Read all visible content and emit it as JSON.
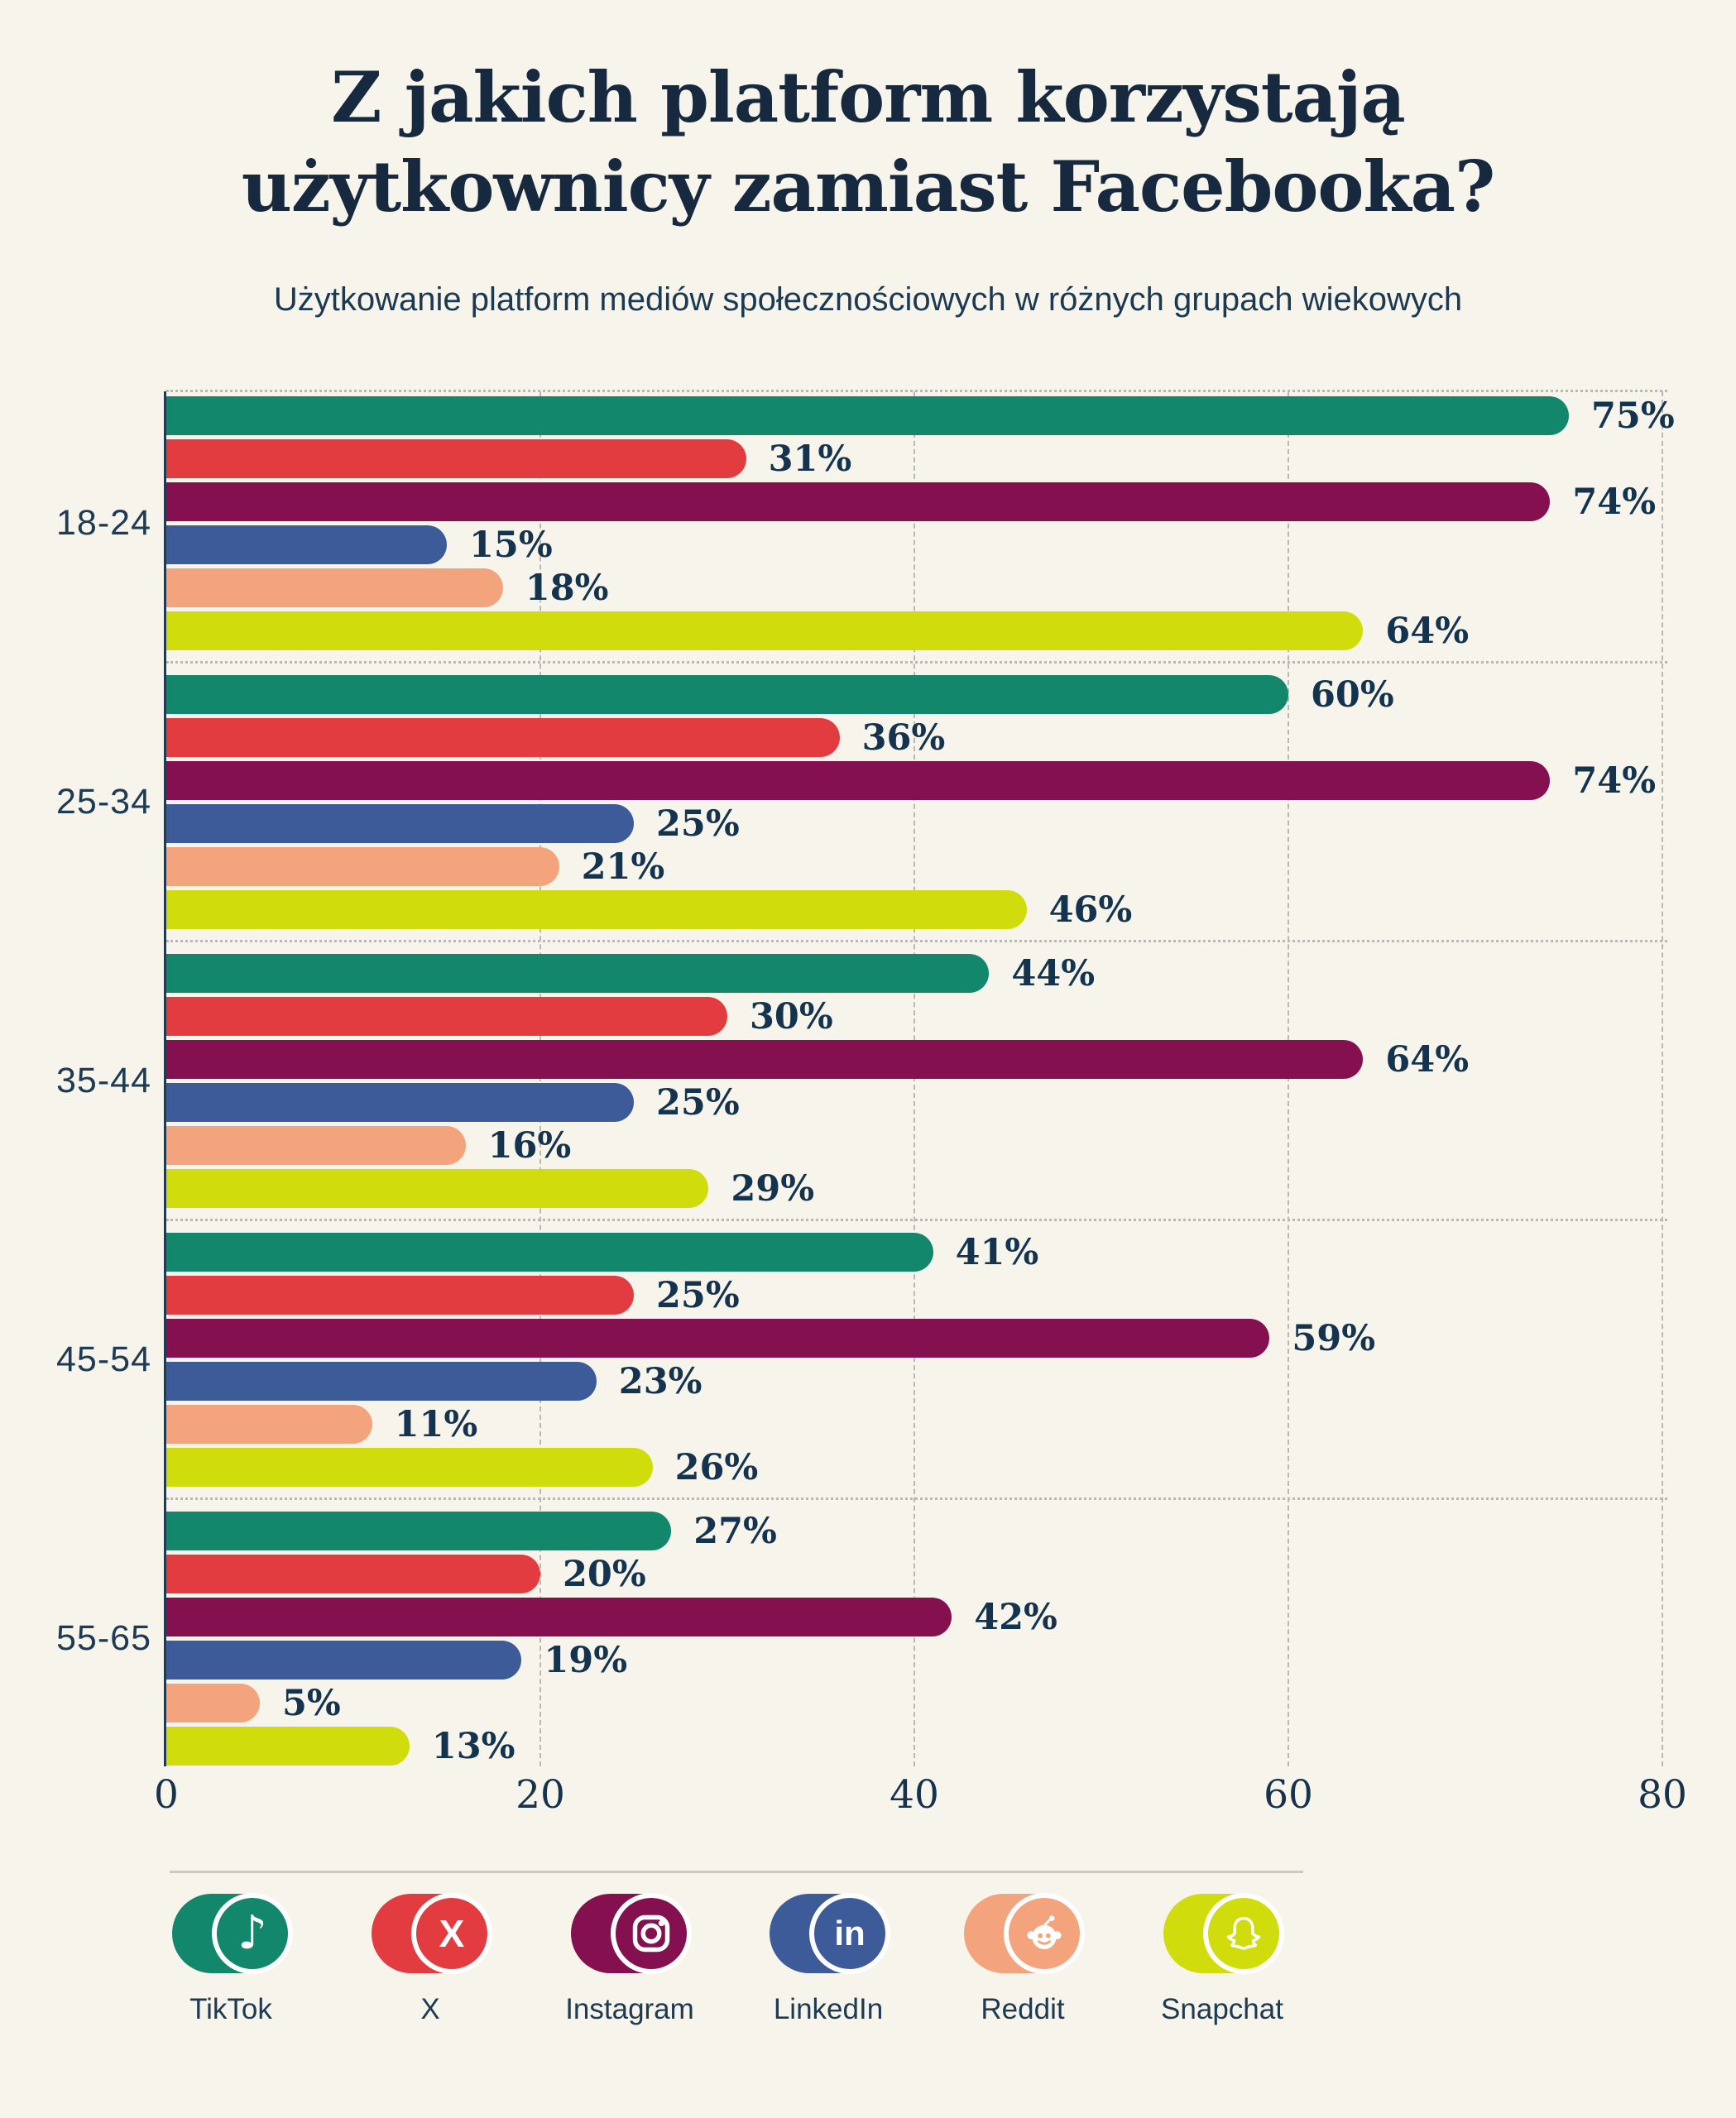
{
  "title": {
    "line1": "Z jakich platform korzystają",
    "line2": "użytkownicy zamiast Facebooka?"
  },
  "subtitle": "Użytkowanie platform mediów społecznościowych w różnych grupach wiekowych",
  "colors": {
    "background": "#F7F4EB",
    "text_navy": "#16314A",
    "axis": "#223A52",
    "gridline": "#B9B8B2",
    "divider": "#CBCAC4",
    "tiktok": "#12876C",
    "x": "#E23C41",
    "instagram": "#85104F",
    "linkedin": "#3D5B99",
    "reddit": "#F3A47C",
    "snapchat": "#D0DC0B"
  },
  "chart_data": {
    "type": "bar",
    "orientation": "horizontal",
    "title": "Z jakich platform korzystają użytkownicy zamiast Facebooka?",
    "subtitle": "Użytkowanie platform mediów społecznościowych w różnych grupach wiekowych",
    "categories": [
      "18-24",
      "25-34",
      "35-44",
      "45-54",
      "55-65"
    ],
    "series": [
      {
        "name": "TikTok",
        "color": "#12876C",
        "values": [
          75,
          60,
          44,
          41,
          27
        ]
      },
      {
        "name": "X",
        "color": "#E23C41",
        "values": [
          31,
          36,
          30,
          25,
          20
        ]
      },
      {
        "name": "Instagram",
        "color": "#85104F",
        "values": [
          74,
          74,
          64,
          59,
          42
        ]
      },
      {
        "name": "LinkedIn",
        "color": "#3D5B99",
        "values": [
          15,
          25,
          25,
          23,
          19
        ]
      },
      {
        "name": "Reddit",
        "color": "#F3A47C",
        "values": [
          18,
          21,
          16,
          11,
          5
        ]
      },
      {
        "name": "Snapchat",
        "color": "#D0DC0B",
        "values": [
          64,
          46,
          29,
          26,
          13
        ]
      }
    ],
    "value_suffix": "%",
    "xlabel": "",
    "ylabel": "",
    "x_ticks": [
      0,
      20,
      40,
      60,
      80
    ],
    "xlim": [
      0,
      80
    ],
    "grid": "vertical-dashed",
    "legend_position": "bottom"
  },
  "legend": {
    "items": [
      {
        "label": "TikTok",
        "icon": "tiktok-icon"
      },
      {
        "label": "X",
        "icon": "x-icon"
      },
      {
        "label": "Instagram",
        "icon": "instagram-icon"
      },
      {
        "label": "LinkedIn",
        "icon": "linkedin-icon"
      },
      {
        "label": "Reddit",
        "icon": "reddit-icon"
      },
      {
        "label": "Snapchat",
        "icon": "snapchat-icon"
      }
    ]
  }
}
